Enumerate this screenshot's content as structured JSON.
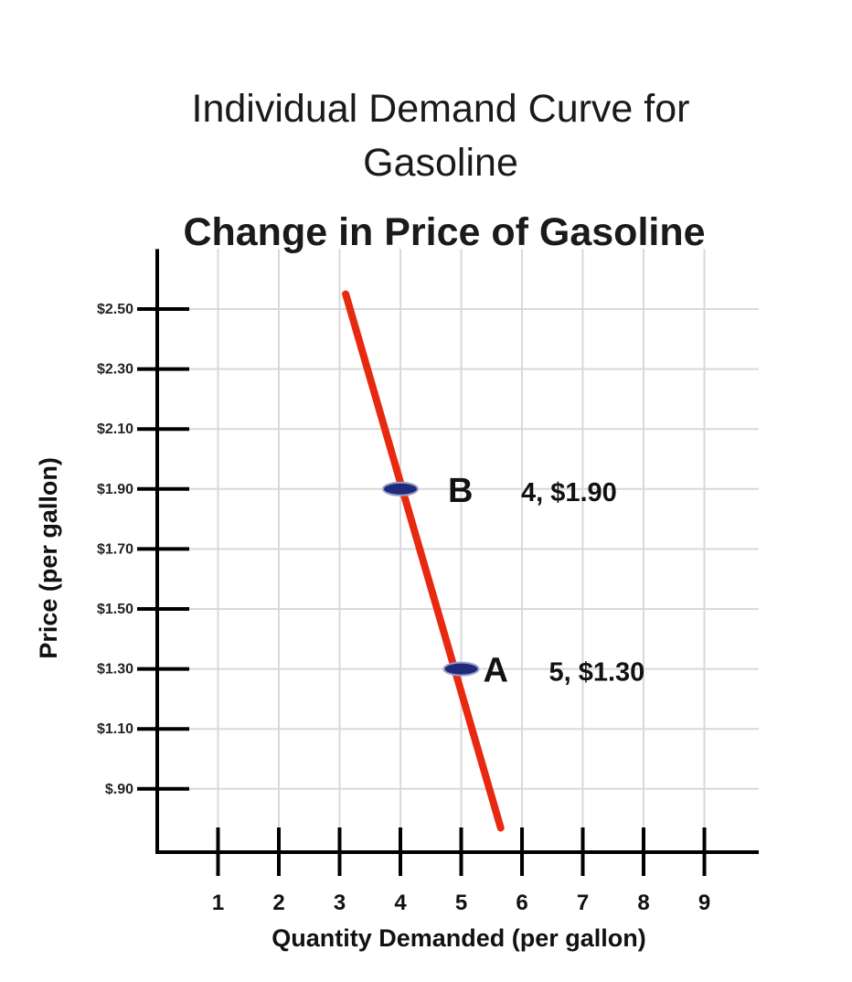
{
  "chart_data": {
    "type": "line",
    "title": "Individual Demand Curve for Gasoline",
    "title_lines": [
      "Individual Demand Curve for",
      "Gasoline"
    ],
    "subtitle": "Change in Price of Gasoline",
    "xlabel": "Quantity Demanded (per gallon)",
    "ylabel": "Price (per gallon)",
    "x_ticks": [
      "1",
      "2",
      "3",
      "4",
      "5",
      "6",
      "7",
      "8",
      "9"
    ],
    "y_ticks": [
      {
        "value": 2.5,
        "label": "$2.50"
      },
      {
        "value": 2.3,
        "label": "$2.30"
      },
      {
        "value": 2.1,
        "label": "$2.10"
      },
      {
        "value": 1.9,
        "label": "$1.90"
      },
      {
        "value": 1.7,
        "label": "$1.70"
      },
      {
        "value": 1.5,
        "label": "$1.50"
      },
      {
        "value": 1.3,
        "label": "$1.30"
      },
      {
        "value": 1.1,
        "label": "$1.10"
      },
      {
        "value": 0.9,
        "label": "$.90"
      }
    ],
    "xlim": [
      0,
      10
    ],
    "ylim": [
      0.7,
      2.7
    ],
    "grid": true,
    "series": [
      {
        "x": [
          3.1,
          5.65
        ],
        "y": [
          2.55,
          0.77
        ],
        "color": "#e8290f"
      }
    ],
    "points": [
      {
        "letter": "B",
        "x": 4,
        "y": 1.9,
        "coord_label": "4, $1.90"
      },
      {
        "letter": "A",
        "x": 5,
        "y": 1.3,
        "coord_label": "5, $1.30"
      }
    ],
    "marker_color": "#1f2a7a",
    "axis_color": "#000000",
    "grid_color": "#d9d9d9"
  }
}
